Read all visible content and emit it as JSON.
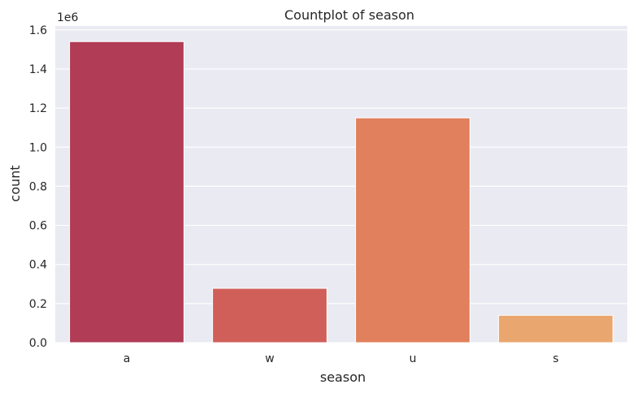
{
  "chart_data": {
    "type": "bar",
    "title": "Countplot of season",
    "xlabel": "season",
    "ylabel": "count",
    "offset_label": "1e6",
    "categories": [
      "a",
      "w",
      "u",
      "s"
    ],
    "values": [
      1540000,
      278000,
      1150000,
      140000
    ],
    "colors": [
      "#b13c55",
      "#d05f5a",
      "#e0805c",
      "#e9a76f"
    ],
    "ylim": [
      0,
      1620000
    ],
    "yticks": [
      0,
      200000,
      400000,
      600000,
      800000,
      1000000,
      1200000,
      1400000,
      1600000
    ],
    "ytick_labels": [
      "0.0",
      "0.2",
      "0.4",
      "0.6",
      "0.8",
      "1.0",
      "1.2",
      "1.4",
      "1.6"
    ],
    "grid": true,
    "background": "#eaeaf2"
  }
}
